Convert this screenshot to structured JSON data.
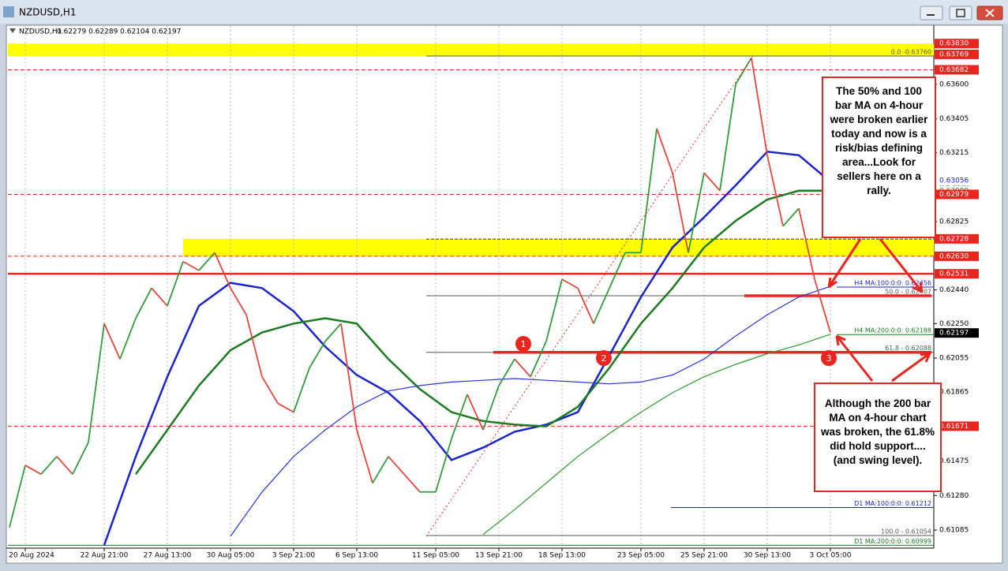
{
  "window_title": "NZDUSD,H1",
  "chart_data": {
    "type": "line",
    "title": "NZDUSD,H1",
    "subtitle": "0.62279 0.62289 0.62104 0.62197",
    "categories": [
      null,
      "20 Aug 2024",
      null,
      null,
      null,
      null,
      "22 Aug 21:00",
      null,
      null,
      null,
      "27 Aug 13:00",
      null,
      null,
      null,
      "30 Aug 05:00",
      null,
      null,
      null,
      "3 Sep 21:00",
      null,
      null,
      null,
      "6 Sep 13:00",
      null,
      null,
      null,
      null,
      "11 Sep 05:00",
      null,
      null,
      null,
      "13 Sep 21:00",
      null,
      null,
      null,
      "18 Sep 13:00",
      null,
      null,
      null,
      null,
      "23 Sep 05:00",
      null,
      null,
      null,
      "25 Sep 21:00",
      null,
      null,
      null,
      "30 Sep 13:00",
      null,
      null,
      null,
      "3 Oct 05:00"
    ],
    "series": [
      {
        "up_color": "#2f9e3a",
        "down_color": "#e2473d",
        "values": [
          0.611,
          0.6145,
          0.614,
          0.615,
          0.614,
          0.6158,
          0.6225,
          0.6205,
          0.6228,
          0.6245,
          0.6235,
          0.626,
          0.6255,
          0.6265,
          0.6245,
          0.623,
          0.6195,
          0.618,
          0.6175,
          0.62,
          0.6215,
          0.6225,
          0.6165,
          0.6135,
          0.615,
          0.614,
          0.613,
          0.613,
          0.616,
          0.6185,
          0.6165,
          0.619,
          0.6205,
          0.6195,
          0.6215,
          0.625,
          0.6245,
          0.6225,
          0.6245,
          0.6265,
          0.6265,
          0.6335,
          0.631,
          0.6265,
          0.631,
          0.63,
          0.636,
          0.6375,
          0.632,
          0.628,
          0.629,
          0.625,
          0.622
        ]
      }
    ],
    "overlays": [
      {
        "color": "#1b24c9",
        "width": 2.5,
        "values": [
          null,
          null,
          null,
          0.61,
          0.615,
          0.6195,
          0.6235,
          0.6248,
          0.6245,
          0.6232,
          0.6212,
          0.6196,
          0.6186,
          0.617,
          0.6148,
          0.6155,
          0.6164,
          0.6168,
          0.6175,
          0.6207,
          0.624,
          0.6268,
          0.6285,
          0.6303,
          0.6322,
          0.632,
          0.6305
        ]
      },
      {
        "color": "#1d7a22",
        "width": 2.5,
        "values": [
          null,
          null,
          null,
          null,
          0.614,
          0.6165,
          0.619,
          0.621,
          0.622,
          0.6225,
          0.6228,
          0.6225,
          0.6205,
          0.6188,
          0.6175,
          0.617,
          0.6168,
          0.6167,
          0.6178,
          0.62,
          0.6225,
          0.6245,
          0.6268,
          0.6283,
          0.6295,
          0.63,
          0.63
        ]
      },
      {
        "color": "#2a35d0",
        "width": 1.2,
        "values": [
          null,
          null,
          null,
          null,
          null,
          null,
          null,
          0.6105,
          0.613,
          0.615,
          0.6165,
          0.6178,
          0.6187,
          0.619,
          0.6192,
          0.6193,
          0.6194,
          0.6193,
          0.6192,
          0.6191,
          0.6192,
          0.6196,
          0.6205,
          0.6218,
          0.623,
          0.624,
          0.6246
        ]
      },
      {
        "color": "#2e9a2e",
        "width": 1.2,
        "values": [
          null,
          null,
          null,
          null,
          null,
          null,
          null,
          null,
          null,
          null,
          null,
          null,
          null,
          null,
          null,
          0.6106,
          0.612,
          0.6135,
          0.615,
          0.6163,
          0.6175,
          0.6186,
          0.6195,
          0.6202,
          0.6208,
          0.6213,
          0.6219
        ]
      }
    ],
    "ylim": [
      0.60983,
      0.63929
    ],
    "yticks": [
      {
        "value": 0.61085,
        "label": "0.61085"
      },
      {
        "value": 0.6128,
        "label": "0.61280"
      },
      {
        "value": 0.61475,
        "label": "0.61475"
      },
      {
        "value": 0.61865,
        "label": "0.61865"
      },
      {
        "value": 0.62055,
        "label": "0.62055"
      },
      {
        "value": 0.6225,
        "label": "0.62250"
      },
      {
        "value": 0.6244,
        "label": "0.62440"
      },
      {
        "value": 0.62825,
        "label": "0.62825"
      },
      {
        "value": 0.6302,
        "label": "0.63020"
      },
      {
        "value": 0.63215,
        "label": "0.63215"
      },
      {
        "value": 0.63405,
        "label": "0.63405"
      },
      {
        "value": 0.636,
        "label": "0.63600"
      }
    ],
    "bands": [
      {
        "from": 0.6376,
        "to": 0.6383,
        "color": "#ffff00"
      },
      {
        "from": 0.6263,
        "to": 0.62728,
        "color": "#ffff00"
      }
    ],
    "levels": [
      {
        "value": 0.6383,
        "label": "0.63830",
        "bg": "#e8261f",
        "fg": "#ffffff",
        "line": "none"
      },
      {
        "value": 0.63769,
        "label": "0.63769",
        "bg": "#e8261f",
        "fg": "#ffffff",
        "line": "none"
      },
      {
        "value": 0.63682,
        "label": "0.63682",
        "bg": "#e8261f",
        "fg": "#ffffff",
        "line": "dash"
      },
      {
        "value": 0.63056,
        "label": "0.63056",
        "bg": "#ffffff",
        "fg": "#1b24c9",
        "line": "none"
      },
      {
        "value": 0.62999,
        "label": "0.62999",
        "bg": "#ffffff",
        "fg": "#1d7a22",
        "line": "none"
      },
      {
        "value": 0.62979,
        "label": "0.62979",
        "bg": "#e8261f",
        "fg": "#ffffff",
        "line": "dash"
      },
      {
        "value": 0.62727,
        "label": "0.62727",
        "bg": "#ffffff",
        "fg": "#333333",
        "line": "dark"
      },
      {
        "value": 0.62728,
        "label": "0.62728",
        "bg": "#e8261f",
        "fg": "#ffffff",
        "line": "none"
      },
      {
        "value": 0.6263,
        "label": "0.62630",
        "bg": "#e8261f",
        "fg": "#ffffff",
        "line": "dash"
      },
      {
        "value": 0.62531,
        "label": "0.62531",
        "bg": "#e8261f",
        "fg": "#ffffff",
        "line": "thick"
      },
      {
        "value": 0.62197,
        "label": "0.62197",
        "bg": "#000000",
        "fg": "#ffffff",
        "line": "none"
      },
      {
        "value": 0.61671,
        "label": "0.61671",
        "bg": "#e8261f",
        "fg": "#ffffff",
        "line": "dash"
      }
    ],
    "line_labels": [
      {
        "value": 0.6376,
        "label": "0.0 -0.63760",
        "color": "#555555"
      },
      {
        "value": 0.62456,
        "label": "H4 MA:100:0:0: 0.62456",
        "color": "#1b24c9"
      },
      {
        "value": 0.62407,
        "label": "50.0 - 0.62407",
        "color": "#555555",
        "highlight": true
      },
      {
        "value": 0.62188,
        "label": "H4 MA:200:0:0: 0.62188",
        "color": "#1d7a22"
      },
      {
        "value": 0.62088,
        "label": "61.8 - 0.62088",
        "color": "#555555",
        "highlight": true
      },
      {
        "value": 0.61212,
        "label": "D1 MA:100:0:0: 0.61212",
        "color": "#1b24c9"
      },
      {
        "value": 0.61054,
        "label": "100.0 - 0.61054",
        "color": "#555555"
      },
      {
        "value": 0.60999,
        "label": "D1 MA:200:0:0: 0.60999",
        "color": "#1d7a22"
      }
    ],
    "markers": [
      "1",
      "2",
      "3"
    ],
    "annotations": [
      "The 50% and 100 bar MA on 4-hour were broken earlier today and now is a risk/bias defining area...Look for sellers here on a rally.",
      "Although the 200 bar MA on 4-hour chart was broken, the 61.8% did hold support....(and swing level)."
    ]
  }
}
